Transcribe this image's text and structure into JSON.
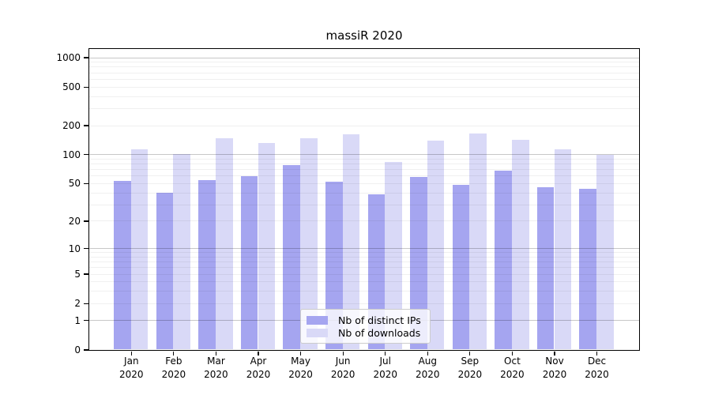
{
  "chart_data": {
    "type": "bar",
    "title": "massiR 2020",
    "categories": [
      "Jan",
      "Feb",
      "Mar",
      "Apr",
      "May",
      "Jun",
      "Jul",
      "Aug",
      "Sep",
      "Oct",
      "Nov",
      "Dec"
    ],
    "year": "2020",
    "series": [
      {
        "name": "Nb of distinct IPs",
        "color": "#a5a5f0",
        "values": [
          53,
          40,
          54,
          59,
          77,
          52,
          38,
          58,
          48,
          68,
          45,
          44
        ]
      },
      {
        "name": "Nb of downloads",
        "color": "#d9d9f7",
        "values": [
          113,
          100,
          148,
          130,
          147,
          160,
          84,
          138,
          163,
          142,
          112,
          98
        ]
      }
    ],
    "y_scale": "log10(value+1)",
    "ylim": [
      0,
      1240
    ],
    "y_ticks": [
      0,
      1,
      2,
      5,
      10,
      20,
      50,
      100,
      200,
      500,
      1000
    ],
    "y_major_gridlines": [
      1,
      10,
      100,
      1000
    ],
    "y_minor_gridlines": [
      2,
      3,
      4,
      5,
      6,
      7,
      8,
      9,
      20,
      30,
      40,
      50,
      60,
      70,
      80,
      90,
      200,
      300,
      400,
      500,
      600,
      700,
      800,
      900
    ],
    "grid": true,
    "legend": {
      "position": "lower-center-inside"
    }
  },
  "colors": {
    "bar_distinct_ips": "#a5a5f0",
    "bar_downloads": "#d9d9f7",
    "spine": "#000000",
    "major_grid": "#c6c6c6",
    "minor_grid": "#ededed",
    "background": "#ffffff",
    "legend_border": "#cccccc"
  }
}
